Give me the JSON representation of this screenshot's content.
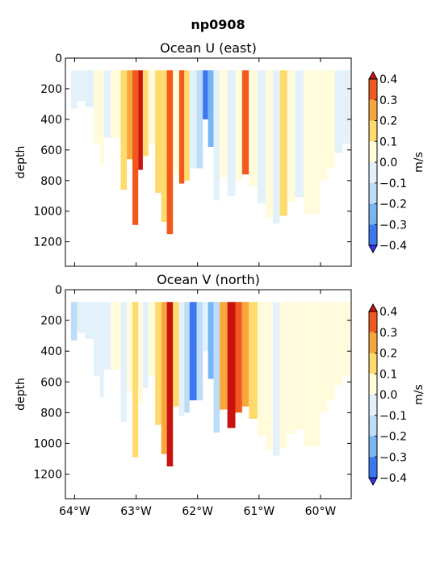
{
  "figure": {
    "suptitle": "np0908"
  },
  "colors": {
    "levels": [
      -0.4,
      -0.3,
      -0.2,
      -0.1,
      0.0,
      0.1,
      0.2,
      0.3,
      0.4
    ],
    "bands": [
      "#3030ff",
      "#3c78f0",
      "#79b4f5",
      "#bcdcf7",
      "#e3f1fb",
      "#fffbdb",
      "#fedb6c",
      "#f9a63a",
      "#f15a1c",
      "#c8130f"
    ],
    "axis": "#000000"
  },
  "chart_data": [
    {
      "type": "heatmap",
      "title": "Ocean U (east)",
      "ylabel": "depth",
      "xlabel": "",
      "x_ticks": [
        -64,
        -63,
        -62,
        -61,
        -60
      ],
      "x_tick_labels": [
        "64°W",
        "63°W",
        "62°W",
        "61°W",
        "60°W"
      ],
      "xlim": [
        -64.15,
        -59.5
      ],
      "y_ticks": [
        0,
        200,
        400,
        600,
        800,
        1000,
        1200
      ],
      "y_tick_labels": [
        "0",
        "200",
        "400",
        "600",
        "800",
        "1000",
        "1200"
      ],
      "ylim": [
        0,
        1360
      ],
      "y_inverted": true,
      "colorbar": {
        "label": "m/s",
        "ticks": [
          -0.4,
          -0.3,
          -0.2,
          -0.1,
          0.0,
          0.1,
          0.2,
          0.3,
          0.4
        ],
        "tick_labels": [
          "−0.4",
          "−0.3",
          "−0.2",
          "−0.1",
          "0.0",
          "0.1",
          "0.2",
          "0.3",
          "0.4"
        ]
      },
      "profiles": [
        {
          "lon": -64.0,
          "max_depth": 330,
          "v": -0.1
        },
        {
          "lon": -63.92,
          "max_depth": 280,
          "v": -0.05
        },
        {
          "lon": -63.75,
          "max_depth": 320,
          "v": -0.1
        },
        {
          "lon": -63.63,
          "max_depth": 560,
          "v": 0.05
        },
        {
          "lon": -63.55,
          "max_depth": 700,
          "v": 0.05
        },
        {
          "lon": -63.5,
          "max_depth": 520,
          "v": -0.05
        },
        {
          "lon": -63.32,
          "max_depth": 520,
          "v": 0.05
        },
        {
          "lon": -63.18,
          "max_depth": 860,
          "v": 0.15
        },
        {
          "lon": -63.12,
          "max_depth": 660,
          "v": 0.25
        },
        {
          "lon": -63.0,
          "max_depth": 1090,
          "v": 0.35
        },
        {
          "lon": -62.93,
          "max_depth": 730,
          "v": 0.45
        },
        {
          "lon": -62.85,
          "max_depth": 640,
          "v": 0.1
        },
        {
          "lon": -62.75,
          "max_depth": 560,
          "v": 0.05
        },
        {
          "lon": -62.63,
          "max_depth": 880,
          "v": 0.1
        },
        {
          "lon": -62.55,
          "max_depth": 1070,
          "v": 0.15
        },
        {
          "lon": -62.45,
          "max_depth": 1150,
          "v": 0.35
        },
        {
          "lon": -62.35,
          "max_depth": 760,
          "v": 0.05
        },
        {
          "lon": -62.25,
          "max_depth": 820,
          "v": 0.3
        },
        {
          "lon": -62.18,
          "max_depth": 800,
          "v": 0.15
        },
        {
          "lon": -62.08,
          "max_depth": 720,
          "v": -0.05
        },
        {
          "lon": -61.95,
          "max_depth": 720,
          "v": -0.15
        },
        {
          "lon": -61.88,
          "max_depth": 400,
          "v": -0.35
        },
        {
          "lon": -61.78,
          "max_depth": 580,
          "v": -0.25
        },
        {
          "lon": -61.7,
          "max_depth": 930,
          "v": -0.1
        },
        {
          "lon": -61.58,
          "max_depth": 780,
          "v": 0.05
        },
        {
          "lon": -61.45,
          "max_depth": 900,
          "v": -0.05
        },
        {
          "lon": -61.32,
          "max_depth": 800,
          "v": 0.05
        },
        {
          "lon": -61.23,
          "max_depth": 760,
          "v": 0.35
        },
        {
          "lon": -61.1,
          "max_depth": 840,
          "v": 0.05
        },
        {
          "lon": -60.95,
          "max_depth": 950,
          "v": -0.05
        },
        {
          "lon": -60.83,
          "max_depth": 1040,
          "v": 0.05
        },
        {
          "lon": -60.72,
          "max_depth": 1080,
          "v": -0.05
        },
        {
          "lon": -60.6,
          "max_depth": 1030,
          "v": 0.15
        },
        {
          "lon": -60.48,
          "max_depth": 940,
          "v": 0.05
        },
        {
          "lon": -60.35,
          "max_depth": 910,
          "v": -0.05
        },
        {
          "lon": -60.2,
          "max_depth": 1020,
          "v": 0.05
        },
        {
          "lon": -60.08,
          "max_depth": 1020,
          "v": 0.05
        },
        {
          "lon": -59.95,
          "max_depth": 800,
          "v": 0.05
        },
        {
          "lon": -59.83,
          "max_depth": 720,
          "v": 0.05
        },
        {
          "lon": -59.7,
          "max_depth": 620,
          "v": -0.05
        },
        {
          "lon": -59.58,
          "max_depth": 560,
          "v": -0.05
        }
      ]
    },
    {
      "type": "heatmap",
      "title": "Ocean V (north)",
      "ylabel": "depth",
      "xlabel": "",
      "x_ticks": [
        -64,
        -63,
        -62,
        -61,
        -60
      ],
      "x_tick_labels": [
        "64°W",
        "63°W",
        "62°W",
        "61°W",
        "60°W"
      ],
      "xlim": [
        -64.15,
        -59.5
      ],
      "y_ticks": [
        0,
        200,
        400,
        600,
        800,
        1000,
        1200
      ],
      "y_tick_labels": [
        "0",
        "200",
        "400",
        "600",
        "800",
        "1000",
        "1200"
      ],
      "ylim": [
        0,
        1360
      ],
      "y_inverted": true,
      "colorbar": {
        "label": "m/s",
        "ticks": [
          -0.4,
          -0.3,
          -0.2,
          -0.1,
          0.0,
          0.1,
          0.2,
          0.3,
          0.4
        ],
        "tick_labels": [
          "−0.4",
          "−0.3",
          "−0.2",
          "−0.1",
          "0.0",
          "0.1",
          "0.2",
          "0.3",
          "0.4"
        ]
      },
      "profiles": [
        {
          "lon": -64.0,
          "max_depth": 330,
          "v": -0.15
        },
        {
          "lon": -63.92,
          "max_depth": 280,
          "v": -0.1
        },
        {
          "lon": -63.75,
          "max_depth": 320,
          "v": -0.1
        },
        {
          "lon": -63.63,
          "max_depth": 560,
          "v": -0.05
        },
        {
          "lon": -63.55,
          "max_depth": 700,
          "v": -0.05
        },
        {
          "lon": -63.5,
          "max_depth": 520,
          "v": -0.05
        },
        {
          "lon": -63.32,
          "max_depth": 520,
          "v": 0.05
        },
        {
          "lon": -63.18,
          "max_depth": 860,
          "v": -0.05
        },
        {
          "lon": -63.12,
          "max_depth": 660,
          "v": 0.05
        },
        {
          "lon": -63.0,
          "max_depth": 1090,
          "v": 0.15
        },
        {
          "lon": -62.93,
          "max_depth": 730,
          "v": 0.05
        },
        {
          "lon": -62.85,
          "max_depth": 640,
          "v": -0.05
        },
        {
          "lon": -62.75,
          "max_depth": 560,
          "v": 0.05
        },
        {
          "lon": -62.63,
          "max_depth": 880,
          "v": 0.15
        },
        {
          "lon": -62.55,
          "max_depth": 1070,
          "v": 0.25
        },
        {
          "lon": -62.45,
          "max_depth": 1150,
          "v": 0.45
        },
        {
          "lon": -62.35,
          "max_depth": 760,
          "v": 0.15
        },
        {
          "lon": -62.25,
          "max_depth": 820,
          "v": -0.05
        },
        {
          "lon": -62.18,
          "max_depth": 800,
          "v": -0.15
        },
        {
          "lon": -62.08,
          "max_depth": 720,
          "v": -0.35
        },
        {
          "lon": -61.95,
          "max_depth": 720,
          "v": -0.15
        },
        {
          "lon": -61.88,
          "max_depth": 400,
          "v": -0.05
        },
        {
          "lon": -61.78,
          "max_depth": 580,
          "v": -0.25
        },
        {
          "lon": -61.7,
          "max_depth": 930,
          "v": -0.15
        },
        {
          "lon": -61.58,
          "max_depth": 780,
          "v": 0.25
        },
        {
          "lon": -61.45,
          "max_depth": 900,
          "v": 0.45
        },
        {
          "lon": -61.32,
          "max_depth": 800,
          "v": 0.35
        },
        {
          "lon": -61.23,
          "max_depth": 760,
          "v": 0.25
        },
        {
          "lon": -61.1,
          "max_depth": 840,
          "v": 0.15
        },
        {
          "lon": -60.95,
          "max_depth": 950,
          "v": 0.05
        },
        {
          "lon": -60.83,
          "max_depth": 1040,
          "v": 0.05
        },
        {
          "lon": -60.72,
          "max_depth": 1080,
          "v": -0.05
        },
        {
          "lon": -60.6,
          "max_depth": 1030,
          "v": 0.05
        },
        {
          "lon": -60.48,
          "max_depth": 940,
          "v": 0.05
        },
        {
          "lon": -60.35,
          "max_depth": 910,
          "v": 0.05
        },
        {
          "lon": -60.2,
          "max_depth": 1020,
          "v": 0.05
        },
        {
          "lon": -60.08,
          "max_depth": 1020,
          "v": 0.05
        },
        {
          "lon": -59.95,
          "max_depth": 800,
          "v": 0.05
        },
        {
          "lon": -59.83,
          "max_depth": 720,
          "v": 0.05
        },
        {
          "lon": -59.7,
          "max_depth": 620,
          "v": 0.05
        },
        {
          "lon": -59.58,
          "max_depth": 560,
          "v": 0.05
        }
      ]
    }
  ]
}
